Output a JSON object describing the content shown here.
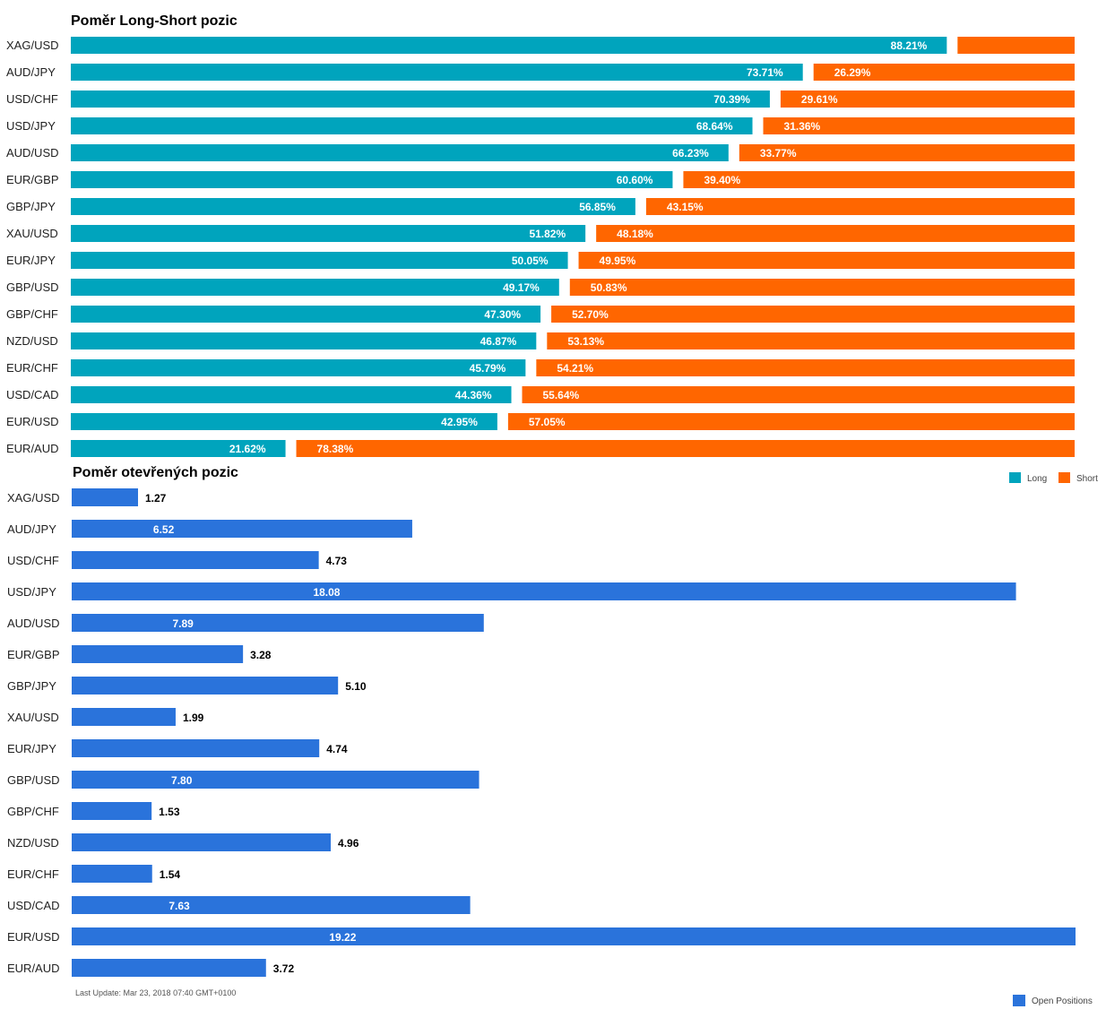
{
  "chart_data": [
    {
      "type": "bar",
      "stacked": true,
      "orientation": "horizontal",
      "title": "Poměr Long-Short pozic",
      "categories": [
        "XAG/USD",
        "AUD/JPY",
        "USD/CHF",
        "USD/JPY",
        "AUD/USD",
        "EUR/GBP",
        "GBP/JPY",
        "XAU/USD",
        "EUR/JPY",
        "GBP/USD",
        "GBP/CHF",
        "NZD/USD",
        "EUR/CHF",
        "USD/CAD",
        "EUR/USD",
        "EUR/AUD"
      ],
      "series": [
        {
          "name": "Long",
          "color": "#00a4bd",
          "values": [
            88.21,
            73.71,
            70.39,
            68.64,
            66.23,
            60.6,
            56.85,
            51.82,
            50.05,
            49.17,
            47.3,
            46.87,
            45.79,
            44.36,
            42.95,
            21.62
          ],
          "labels": [
            "88.21%",
            "73.71%",
            "70.39%",
            "68.64%",
            "66.23%",
            "60.60%",
            "56.85%",
            "51.82%",
            "50.05%",
            "49.17%",
            "47.30%",
            "46.87%",
            "45.79%",
            "44.36%",
            "42.95%",
            "21.62%"
          ]
        },
        {
          "name": "Short",
          "color": "#ff6600",
          "values": [
            11.79,
            26.29,
            29.61,
            31.36,
            33.77,
            39.4,
            43.15,
            48.18,
            49.95,
            50.83,
            52.7,
            53.13,
            54.21,
            55.64,
            57.05,
            78.38
          ],
          "labels": [
            "",
            "26.29%",
            "29.61%",
            "31.36%",
            "33.77%",
            "39.40%",
            "43.15%",
            "48.18%",
            "49.95%",
            "50.83%",
            "52.70%",
            "53.13%",
            "54.21%",
            "55.64%",
            "57.05%",
            "78.38%"
          ]
        }
      ],
      "xlim": [
        0,
        100
      ],
      "legend": "bottom-right"
    },
    {
      "type": "bar",
      "orientation": "horizontal",
      "title": "Poměr otevřených pozic",
      "categories": [
        "XAG/USD",
        "AUD/JPY",
        "USD/CHF",
        "USD/JPY",
        "AUD/USD",
        "EUR/GBP",
        "GBP/JPY",
        "XAU/USD",
        "EUR/JPY",
        "GBP/USD",
        "GBP/CHF",
        "NZD/USD",
        "EUR/CHF",
        "USD/CAD",
        "EUR/USD",
        "EUR/AUD"
      ],
      "series": [
        {
          "name": "Open Positions",
          "color": "#2a73db",
          "values": [
            1.27,
            6.52,
            4.73,
            18.08,
            7.89,
            3.28,
            5.1,
            1.99,
            4.74,
            7.8,
            1.53,
            4.96,
            1.54,
            7.63,
            19.22,
            3.72
          ],
          "labels": [
            "1.27",
            "6.52",
            "4.73",
            "18.08",
            "7.89",
            "3.28",
            "5.10",
            "1.99",
            "4.74",
            "7.80",
            "1.53",
            "4.96",
            "1.54",
            "7.63",
            "19.22",
            "3.72"
          ]
        }
      ],
      "xlim": [
        0,
        19.22
      ],
      "legend": "bottom-right"
    }
  ],
  "footer": {
    "last_update": "Last Update: Mar 23, 2018 07:40 GMT+0100"
  }
}
